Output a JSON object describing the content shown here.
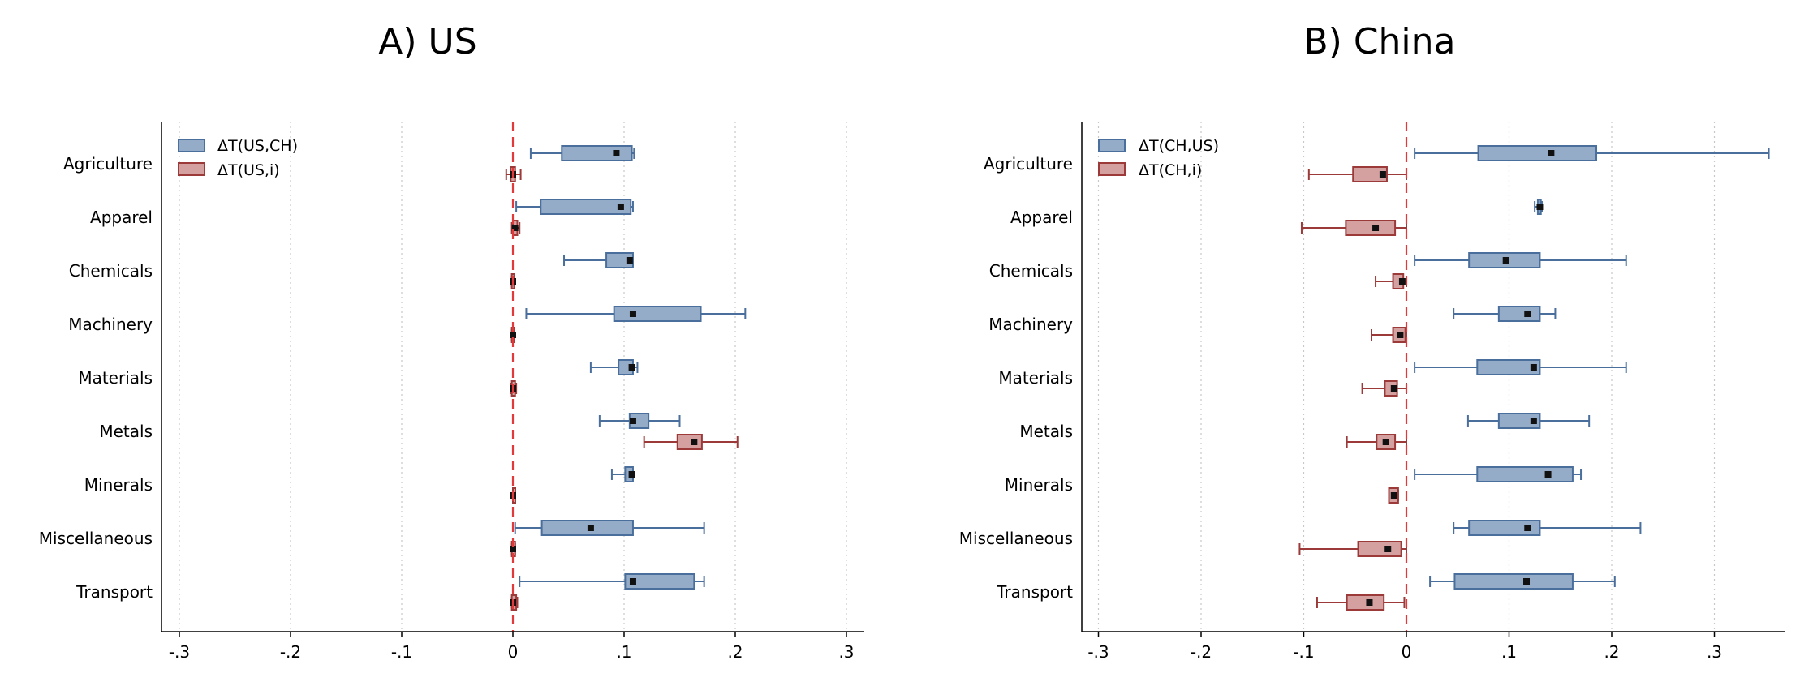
{
  "chart_data": [
    {
      "type": "box",
      "orientation": "horizontal",
      "title": "A) US",
      "xlim": [
        -0.32,
        0.32
      ],
      "xticks": [
        -0.3,
        -0.2,
        -0.1,
        0,
        0.1,
        0.2,
        0.3
      ],
      "xtick_labels": [
        "-.3",
        "-.2",
        "-.1",
        "0",
        ".1",
        ".2",
        ".3"
      ],
      "reference_line": 0,
      "grid": "vertical dotted",
      "legend_position": "top-left",
      "categories": [
        "Agriculture",
        "Apparel",
        "Chemicals",
        "Machinery",
        "Materials",
        "Metals",
        "Minerals",
        "Miscellaneous",
        "Transport"
      ],
      "series": [
        {
          "name": "ΔT(US,CH)",
          "color": "#4a6f9c",
          "fill": "#95acc8",
          "boxes": [
            {
              "whisker_low": 0.016,
              "q1": 0.044,
              "median": 0.093,
              "q3": 0.107,
              "whisker_high": 0.109
            },
            {
              "whisker_low": 0.003,
              "q1": 0.025,
              "median": 0.097,
              "q3": 0.106,
              "whisker_high": 0.108
            },
            {
              "whisker_low": 0.046,
              "q1": 0.084,
              "median": 0.105,
              "q3": 0.108,
              "whisker_high": 0.108
            },
            {
              "whisker_low": 0.012,
              "q1": 0.091,
              "median": 0.108,
              "q3": 0.169,
              "whisker_high": 0.209
            },
            {
              "whisker_low": 0.07,
              "q1": 0.095,
              "median": 0.107,
              "q3": 0.108,
              "whisker_high": 0.112
            },
            {
              "whisker_low": 0.078,
              "q1": 0.105,
              "median": 0.108,
              "q3": 0.122,
              "whisker_high": 0.15
            },
            {
              "whisker_low": 0.089,
              "q1": 0.101,
              "median": 0.107,
              "q3": 0.108,
              "whisker_high": 0.108
            },
            {
              "whisker_low": 0.002,
              "q1": 0.026,
              "median": 0.07,
              "q3": 0.108,
              "whisker_high": 0.172
            },
            {
              "whisker_low": 0.006,
              "q1": 0.101,
              "median": 0.108,
              "q3": 0.163,
              "whisker_high": 0.172
            }
          ]
        },
        {
          "name": "ΔT(US,i)",
          "color": "#9c3a3a",
          "fill": "#d4a0a0",
          "boxes": [
            {
              "whisker_low": -0.006,
              "q1": -0.002,
              "median": 0.0,
              "q3": 0.002,
              "whisker_high": 0.007
            },
            {
              "whisker_low": -0.001,
              "q1": 0.0,
              "median": 0.002,
              "q3": 0.004,
              "whisker_high": 0.006
            },
            {
              "whisker_low": -0.001,
              "q1": -0.001,
              "median": 0.0,
              "q3": 0.001,
              "whisker_high": 0.001
            },
            {
              "whisker_low": -0.001,
              "q1": -0.001,
              "median": 0.0,
              "q3": 0.001,
              "whisker_high": 0.001
            },
            {
              "whisker_low": -0.002,
              "q1": -0.001,
              "median": 0.0,
              "q3": 0.002,
              "whisker_high": 0.003
            },
            {
              "whisker_low": 0.118,
              "q1": 0.148,
              "median": 0.163,
              "q3": 0.17,
              "whisker_high": 0.202
            },
            {
              "whisker_low": 0.0,
              "q1": 0.0,
              "median": 0.0,
              "q3": 0.0,
              "whisker_high": 0.0
            },
            {
              "whisker_low": -0.001,
              "q1": -0.001,
              "median": 0.0,
              "q3": 0.002,
              "whisker_high": 0.002
            },
            {
              "whisker_low": -0.001,
              "q1": -0.001,
              "median": 0.0,
              "q3": 0.003,
              "whisker_high": 0.004
            }
          ]
        }
      ]
    },
    {
      "type": "box",
      "orientation": "horizontal",
      "title": "B) China",
      "xlim": [
        -0.32,
        0.36
      ],
      "xticks": [
        -0.3,
        -0.2,
        -0.1,
        0,
        0.1,
        0.2,
        0.3
      ],
      "xtick_labels": [
        "-.3",
        "-.2",
        "-.1",
        "0",
        ".1",
        ".2",
        ".3"
      ],
      "reference_line": 0,
      "grid": "vertical dotted",
      "legend_position": "top-left",
      "categories": [
        "Agriculture",
        "Apparel",
        "Chemicals",
        "Machinery",
        "Materials",
        "Metals",
        "Minerals",
        "Miscellaneous",
        "Transport"
      ],
      "series": [
        {
          "name": "ΔT(CH,US)",
          "color": "#4a6f9c",
          "fill": "#95acc8",
          "boxes": [
            {
              "whisker_low": 0.008,
              "q1": 0.07,
              "median": 0.141,
              "q3": 0.185,
              "whisker_high": 0.353
            },
            {
              "whisker_low": 0.125,
              "q1": 0.128,
              "median": 0.13,
              "q3": 0.131,
              "whisker_high": 0.132
            },
            {
              "whisker_low": 0.008,
              "q1": 0.061,
              "median": 0.097,
              "q3": 0.13,
              "whisker_high": 0.214
            },
            {
              "whisker_low": 0.046,
              "q1": 0.09,
              "median": 0.118,
              "q3": 0.13,
              "whisker_high": 0.145
            },
            {
              "whisker_low": 0.008,
              "q1": 0.069,
              "median": 0.124,
              "q3": 0.13,
              "whisker_high": 0.214
            },
            {
              "whisker_low": 0.06,
              "q1": 0.09,
              "median": 0.124,
              "q3": 0.13,
              "whisker_high": 0.178
            },
            {
              "whisker_low": 0.008,
              "q1": 0.069,
              "median": 0.138,
              "q3": 0.162,
              "whisker_high": 0.17
            },
            {
              "whisker_low": 0.046,
              "q1": 0.061,
              "median": 0.118,
              "q3": 0.13,
              "whisker_high": 0.228
            },
            {
              "whisker_low": 0.023,
              "q1": 0.047,
              "median": 0.117,
              "q3": 0.162,
              "whisker_high": 0.203
            }
          ]
        },
        {
          "name": "ΔT(CH,i)",
          "color": "#9c3a3a",
          "fill": "#d4a0a0",
          "boxes": [
            {
              "whisker_low": -0.095,
              "q1": -0.052,
              "median": -0.023,
              "q3": -0.019,
              "whisker_high": 0.0
            },
            {
              "whisker_low": -0.102,
              "q1": -0.059,
              "median": -0.03,
              "q3": -0.011,
              "whisker_high": 0.0
            },
            {
              "whisker_low": -0.03,
              "q1": -0.013,
              "median": -0.004,
              "q3": -0.003,
              "whisker_high": 0.0
            },
            {
              "whisker_low": -0.034,
              "q1": -0.013,
              "median": -0.006,
              "q3": -0.001,
              "whisker_high": 0.0
            },
            {
              "whisker_low": -0.043,
              "q1": -0.021,
              "median": -0.012,
              "q3": -0.009,
              "whisker_high": 0.0
            },
            {
              "whisker_low": -0.058,
              "q1": -0.029,
              "median": -0.02,
              "q3": -0.011,
              "whisker_high": 0.0
            },
            {
              "whisker_low": -0.017,
              "q1": -0.017,
              "median": -0.012,
              "q3": -0.008,
              "whisker_high": -0.008
            },
            {
              "whisker_low": -0.104,
              "q1": -0.047,
              "median": -0.018,
              "q3": -0.005,
              "whisker_high": 0.0
            },
            {
              "whisker_low": -0.087,
              "q1": -0.058,
              "median": -0.036,
              "q3": -0.022,
              "whisker_high": -0.002
            }
          ]
        }
      ]
    }
  ]
}
